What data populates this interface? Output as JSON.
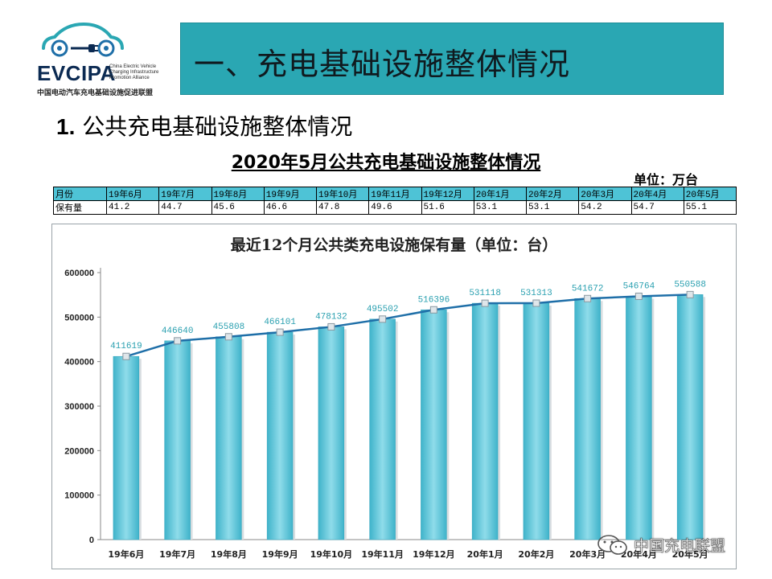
{
  "logo": {
    "word": "EVCIPA",
    "english_lines": [
      "China Electric Vehicle",
      "Charging Infrastructure",
      "Promotion Alliance"
    ],
    "chinese": "中国电动汽车充电基础设施促进联盟",
    "color": "#0b2a52",
    "accent": "#2aa7b3"
  },
  "header": {
    "title": "一、充电基础设施整体情况"
  },
  "section": {
    "number": "1.",
    "title": "公共充电基础设施整体情况"
  },
  "table": {
    "title": "2020年5月公共充电基础设施整体情况",
    "unit": "单位：万台",
    "month_label": "月份",
    "stock_label": "保有量",
    "months": [
      "19年6月",
      "19年7月",
      "19年8月",
      "19年9月",
      "19年10月",
      "19年11月",
      "19年12月",
      "20年1月",
      "20年2月",
      "20年3月",
      "20年4月",
      "20年5月"
    ],
    "values": [
      "41.2",
      "44.7",
      "45.6",
      "46.6",
      "47.8",
      "49.6",
      "51.6",
      "53.1",
      "53.1",
      "54.2",
      "54.7",
      "55.1"
    ]
  },
  "chart_data": {
    "type": "bar",
    "title": "最近12个月公共类充电设施保有量（单位：台）",
    "categories": [
      "19年6月",
      "19年7月",
      "19年8月",
      "19年9月",
      "19年10月",
      "19年11月",
      "19年12月",
      "20年1月",
      "20年2月",
      "20年3月",
      "20年4月",
      "20年5月"
    ],
    "series": [
      {
        "name": "保有量",
        "type": "bar",
        "values": [
          411619,
          446640,
          455808,
          466101,
          478132,
          495502,
          516396,
          531118,
          531313,
          541672,
          546764,
          550588
        ]
      },
      {
        "name": "保有量",
        "type": "line",
        "values": [
          411619,
          446640,
          455808,
          466101,
          478132,
          495502,
          516396,
          531118,
          531313,
          541672,
          546764,
          550588
        ]
      }
    ],
    "data_labels": [
      "411619",
      "446640",
      "455808",
      "466101",
      "478132",
      "495502",
      "516396",
      "531118",
      "531313",
      "541672",
      "546764",
      "550588"
    ],
    "yticks": [
      "0",
      "100000",
      "200000",
      "300000",
      "400000",
      "500000",
      "600000"
    ],
    "ylim": [
      0,
      600000
    ],
    "xlabel": "",
    "ylabel": "",
    "grid": false,
    "bar_color": "#5bc7dc",
    "line_color": "#1f6fa8",
    "label_color": "#2aa0b0"
  },
  "watermark": {
    "text": "中国充电联盟"
  }
}
